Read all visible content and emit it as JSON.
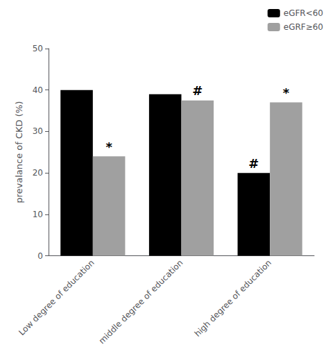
{
  "chart_data": {
    "type": "bar",
    "categories": [
      "Low degree of education",
      "middle degree of education",
      "high degree of education"
    ],
    "series": [
      {
        "name": "eGFR<60",
        "color": "#000000",
        "values": [
          40,
          39,
          20
        ]
      },
      {
        "name": "eGRF≥60",
        "color": "#a0a0a0",
        "values": [
          24,
          37.5,
          37
        ]
      }
    ],
    "ylabel": "prevalance of CKD (%)",
    "ylim": [
      0,
      50
    ],
    "yticks": [
      0,
      10,
      20,
      30,
      40,
      50
    ],
    "grid": false,
    "legend": "upper right",
    "annotations": [
      {
        "text": "*",
        "category": "Low degree of education",
        "series": "eGRF≥60"
      },
      {
        "text": "#",
        "category": "middle degree of education",
        "series": "eGRF≥60"
      },
      {
        "text": "#",
        "category": "high degree of education",
        "series": "eGFR<60"
      },
      {
        "text": "*",
        "category": "high degree of education",
        "series": "eGRF≥60"
      }
    ]
  }
}
